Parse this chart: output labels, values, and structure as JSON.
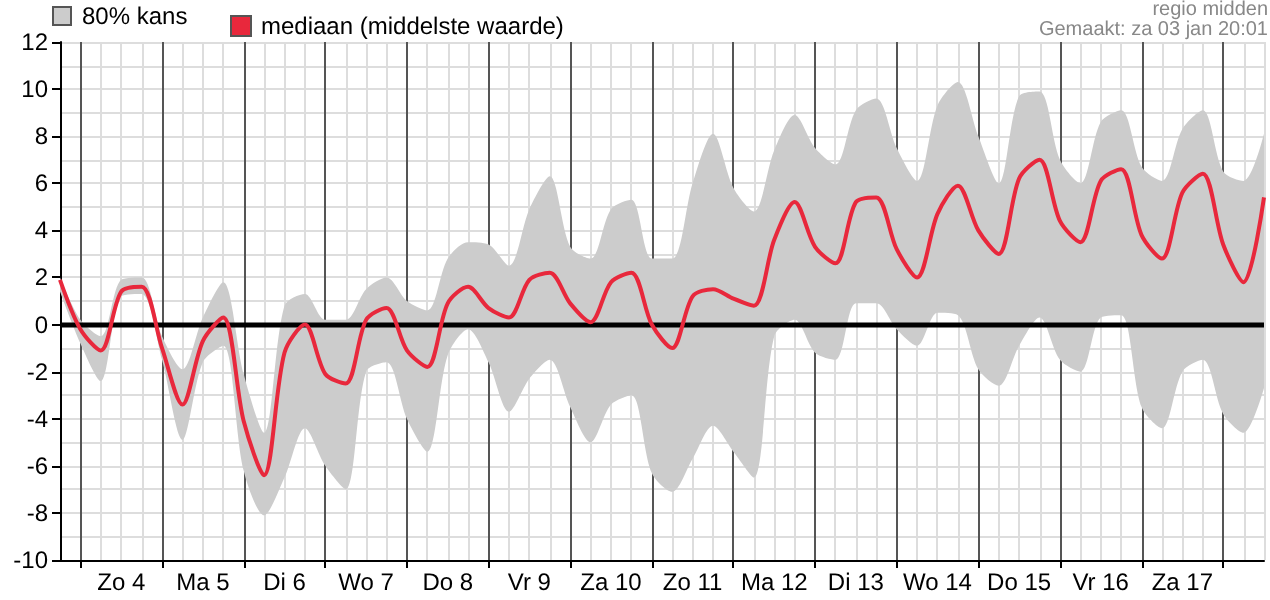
{
  "chart_data": {
    "type": "line",
    "categories": [
      null,
      null,
      null,
      "Zo 4",
      null,
      null,
      null,
      "Ma 5",
      null,
      null,
      null,
      "Di 6",
      null,
      null,
      null,
      "Wo 7",
      null,
      null,
      null,
      "Do 8",
      null,
      null,
      null,
      "Vr 9",
      null,
      null,
      null,
      "Za 10",
      null,
      null,
      null,
      "Zo 11",
      null,
      null,
      null,
      "Ma 12",
      null,
      null,
      null,
      "Di 13",
      null,
      null,
      null,
      "Wo 14",
      null,
      null,
      null,
      "Do 15",
      null,
      null,
      null,
      "Vr 16",
      null,
      null,
      null,
      "Za 17",
      null,
      null,
      null,
      null
    ],
    "series": [
      {
        "name": "mediaan (middelste waarde)",
        "color": "#e8283c",
        "values": [
          1.9,
          -0.2,
          -1.1,
          1.4,
          1.6,
          -1.0,
          -3.4,
          -0.7,
          0.3,
          -4.1,
          -6.4,
          -1.2,
          0.0,
          -2.1,
          -2.5,
          0.2,
          0.7,
          -1.1,
          -1.8,
          0.9,
          1.6,
          0.7,
          0.3,
          1.9,
          2.2,
          0.9,
          0.1,
          1.8,
          2.2,
          0.0,
          -1.0,
          1.2,
          1.5,
          1.1,
          0.8,
          3.6,
          5.2,
          3.3,
          2.6,
          5.2,
          5.4,
          3.2,
          2.0,
          4.7,
          5.9,
          4.0,
          3.0,
          6.2,
          7.0,
          4.4,
          3.5,
          6.1,
          6.6,
          3.8,
          2.8,
          5.6,
          6.4,
          3.4,
          1.8,
          5.4
        ],
        "lower": [
          1.4,
          -0.8,
          -2.4,
          1.2,
          1.3,
          -1.5,
          -4.9,
          -1.6,
          -0.9,
          -6.2,
          -8.1,
          -6.5,
          -4.4,
          -6.0,
          -7.0,
          -2.0,
          -1.6,
          -4.0,
          -5.4,
          -1.3,
          -0.2,
          -1.6,
          -3.7,
          -2.3,
          -1.5,
          -3.5,
          -5.0,
          -3.4,
          -3.0,
          -6.3,
          -7.1,
          -5.7,
          -4.3,
          -5.4,
          -6.5,
          -0.5,
          0.2,
          -1.2,
          -1.5,
          0.9,
          0.9,
          -0.2,
          -0.9,
          0.5,
          0.4,
          -1.9,
          -2.6,
          -0.9,
          0.3,
          -1.5,
          -2.0,
          0.3,
          0.4,
          -3.5,
          -4.4,
          -2.0,
          -1.5,
          -3.8,
          -4.6,
          -2.7
        ],
        "upper": [
          2.0,
          0.2,
          -0.5,
          1.9,
          2.0,
          -0.5,
          -1.9,
          0.3,
          1.8,
          -2.1,
          -4.6,
          0.8,
          1.3,
          0.2,
          0.2,
          1.5,
          2.0,
          1.0,
          0.6,
          2.8,
          3.5,
          3.4,
          2.5,
          4.9,
          6.3,
          3.3,
          2.8,
          4.9,
          5.3,
          2.8,
          2.8,
          6.0,
          8.1,
          5.8,
          4.8,
          7.4,
          8.9,
          7.5,
          6.8,
          9.1,
          9.6,
          7.5,
          6.1,
          9.3,
          10.3,
          8.0,
          6.0,
          9.7,
          9.9,
          7.0,
          6.0,
          8.6,
          9.1,
          6.7,
          6.1,
          8.3,
          9.1,
          6.5,
          6.1,
          8.1
        ]
      }
    ],
    "ylim": [
      -10,
      12
    ],
    "yticks": [
      -10,
      -8,
      -6,
      -4,
      -2,
      0,
      2,
      4,
      6,
      8,
      10,
      12
    ],
    "ref_lines": [
      {
        "axis": "y",
        "value": 0,
        "color": "#000000"
      }
    ],
    "grid": true,
    "legend": "top left",
    "marker": "none",
    "annotations": [
      "80% kans",
      "regio midden",
      "Gemaakt: za 03 jan 20:01"
    ]
  }
}
